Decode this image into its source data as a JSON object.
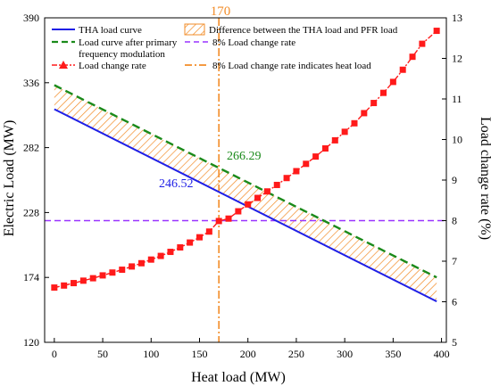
{
  "chart_data": {
    "type": "line",
    "title": "",
    "xlabel": "Heat load (MW)",
    "ylabel_left": "Electric Load (MW)",
    "ylabel_right": "Load change rate (%)",
    "xlim": [
      -10,
      405
    ],
    "ylim_left": [
      120,
      390
    ],
    "ylim_right": [
      5,
      13
    ],
    "xticks": [
      "0",
      "50",
      "100",
      "150",
      "200",
      "250",
      "300",
      "350",
      "400"
    ],
    "yticks_left": [
      "120",
      "174",
      "228",
      "282",
      "336",
      "390"
    ],
    "yticks_right": [
      "5",
      "6",
      "7",
      "8",
      "9",
      "10",
      "11",
      "12",
      "13"
    ],
    "grid": false,
    "legend_placement": "top",
    "legend": {
      "tha": "THA load curve",
      "pfr_line1": "Load curve after primary",
      "pfr_line2": "frequency modulation",
      "rate": "Load change rate",
      "diff": "Difference between the THA load and PFR load",
      "eight": "8% Load change rate",
      "eight_heat": "8% Load change rate indicates heat load"
    },
    "series": [
      {
        "name": "THA load curve",
        "axis": "left",
        "color": "#1f1fe6",
        "style": "solid",
        "x": [
          0,
          395
        ],
        "y": [
          314,
          154
        ]
      },
      {
        "name": "Load curve after primary frequency modulation",
        "axis": "left",
        "color": "#1a8a1a",
        "style": "dashed",
        "x": [
          0,
          395
        ],
        "y": [
          334,
          174
        ]
      },
      {
        "name": "Load change rate",
        "axis": "right",
        "color": "#ff1a1a",
        "style": "dash-dot",
        "marker": "square",
        "x": [
          0,
          10,
          20,
          30,
          40,
          50,
          60,
          70,
          80,
          90,
          100,
          110,
          120,
          130,
          140,
          150,
          160,
          170,
          180,
          190,
          200,
          210,
          220,
          230,
          240,
          250,
          260,
          270,
          280,
          290,
          300,
          310,
          320,
          330,
          340,
          350,
          360,
          370,
          380,
          395
        ],
        "y": [
          6.35,
          6.4,
          6.46,
          6.52,
          6.58,
          6.65,
          6.72,
          6.79,
          6.87,
          6.95,
          7.04,
          7.13,
          7.23,
          7.34,
          7.46,
          7.59,
          7.73,
          7.99,
          8.05,
          8.23,
          8.4,
          8.56,
          8.72,
          8.88,
          9.05,
          9.22,
          9.4,
          9.58,
          9.78,
          9.98,
          10.19,
          10.4,
          10.65,
          10.9,
          11.15,
          11.42,
          11.72,
          12.04,
          12.36,
          12.68
        ]
      }
    ],
    "filled_region": {
      "name": "Difference between the THA load and PFR load",
      "between": [
        "THA load curve",
        "Load curve after primary frequency modulation"
      ],
      "color": "#f28c28",
      "pattern": "hatch"
    },
    "reference_lines": [
      {
        "name": "8% Load change rate",
        "orientation": "horizontal",
        "axis": "right",
        "value": 8,
        "color": "#9933ff"
      },
      {
        "name": "8% Load change rate indicates heat load",
        "orientation": "vertical",
        "value": 170,
        "color": "#f28c28"
      }
    ],
    "annotations": [
      {
        "text": "170",
        "color": "#f28c28"
      },
      {
        "text": "266.29",
        "color": "#1a8a1a"
      },
      {
        "text": "246.52",
        "color": "#1f1fe6"
      }
    ]
  }
}
